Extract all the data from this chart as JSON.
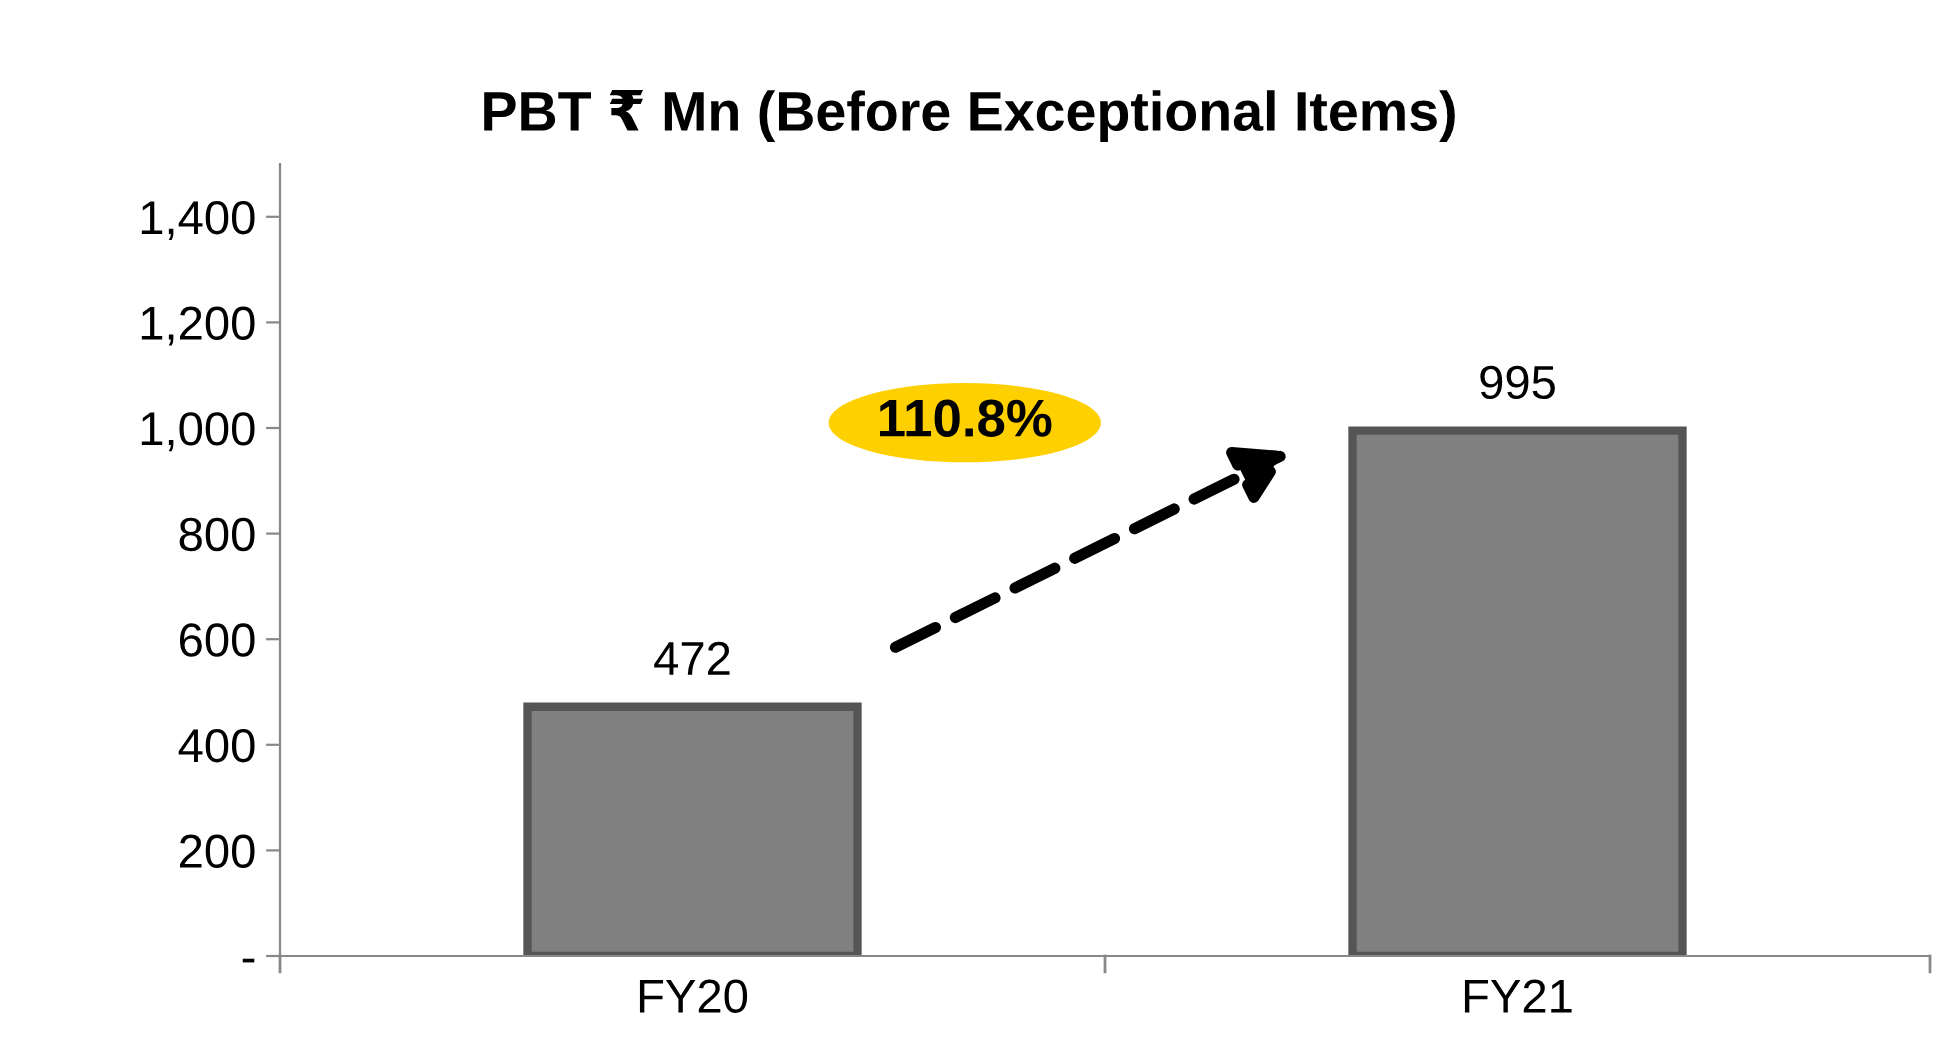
{
  "chart_data": {
    "type": "bar",
    "title": "PBT ₹ Mn (Before Exceptional Items)",
    "categories": [
      "FY20",
      "FY21"
    ],
    "values": [
      472,
      995
    ],
    "color": "#808080",
    "ylim": [
      0,
      1500
    ],
    "yticks": [
      {
        "value": 0,
        "label": "-"
      },
      {
        "value": 200,
        "label": "200"
      },
      {
        "value": 400,
        "label": "400"
      },
      {
        "value": 600,
        "label": "600"
      },
      {
        "value": 800,
        "label": "800"
      },
      {
        "value": 1000,
        "label": "1,000"
      },
      {
        "value": 1200,
        "label": "1,200"
      },
      {
        "value": 1400,
        "label": "1,400"
      }
    ],
    "data_labels": true,
    "grid": false,
    "annotations": [
      "110.8%"
    ]
  }
}
